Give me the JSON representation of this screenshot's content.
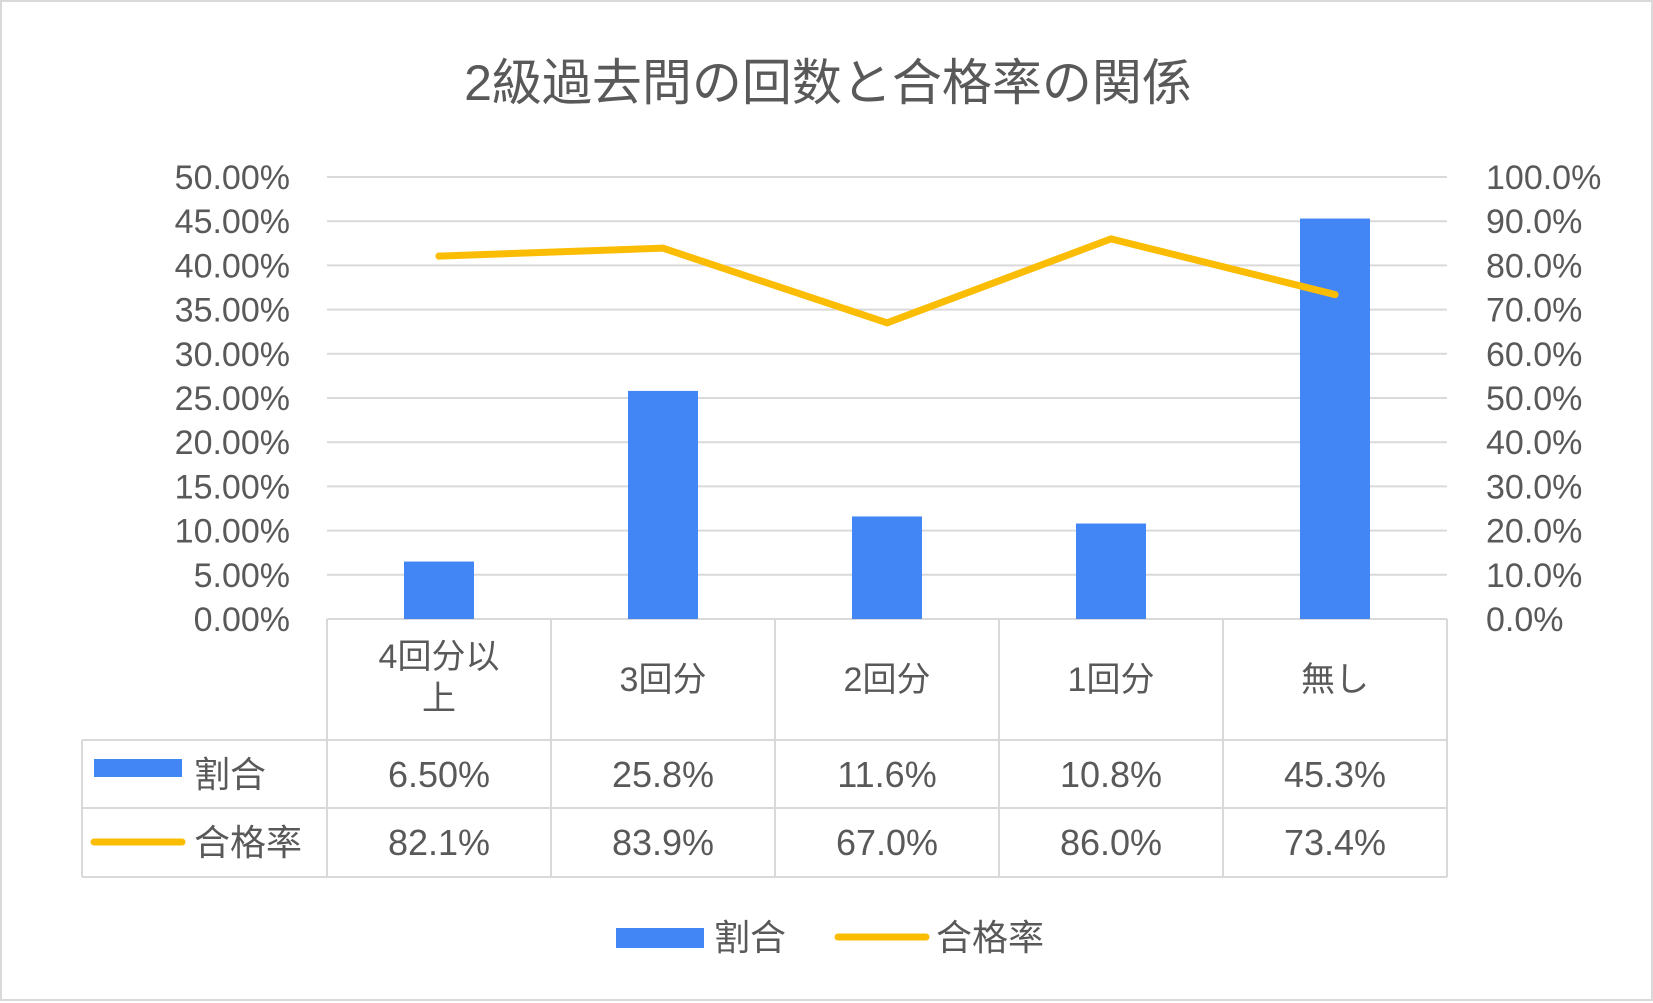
{
  "colors": {
    "bar": "#4285F4",
    "line": "#FBBC04",
    "grid": "#d9d9d9",
    "text": "#595959"
  },
  "chart_data": {
    "type": "bar",
    "title": "2級過去問の回数と合格率の関係",
    "categories": [
      "4回分以上",
      "3回分",
      "2回分",
      "1回分",
      "無し"
    ],
    "series": [
      {
        "name": "割合",
        "type": "bar",
        "axis": "left",
        "values": [
          6.5,
          25.8,
          11.6,
          10.8,
          45.3
        ],
        "labels": [
          "6.50%",
          "25.8%",
          "11.6%",
          "10.8%",
          "45.3%"
        ]
      },
      {
        "name": "合格率",
        "type": "line",
        "axis": "right",
        "values": [
          82.1,
          83.9,
          67.0,
          86.0,
          73.4
        ],
        "labels": [
          "82.1%",
          "83.9%",
          "67.0%",
          "86.0%",
          "73.4%"
        ]
      }
    ],
    "y_left": {
      "min": 0,
      "max": 50,
      "step": 5,
      "tick_labels": [
        "0.00%",
        "5.00%",
        "10.00%",
        "15.00%",
        "20.00%",
        "25.00%",
        "30.00%",
        "35.00%",
        "40.00%",
        "45.00%",
        "50.00%"
      ]
    },
    "y_right": {
      "min": 0,
      "max": 100,
      "step": 10,
      "tick_labels": [
        "0.0%",
        "10.0%",
        "20.0%",
        "30.0%",
        "40.0%",
        "50.0%",
        "60.0%",
        "70.0%",
        "80.0%",
        "90.0%",
        "100.0%"
      ]
    },
    "grid": true,
    "data_table": true,
    "legend_position": "bottom"
  }
}
